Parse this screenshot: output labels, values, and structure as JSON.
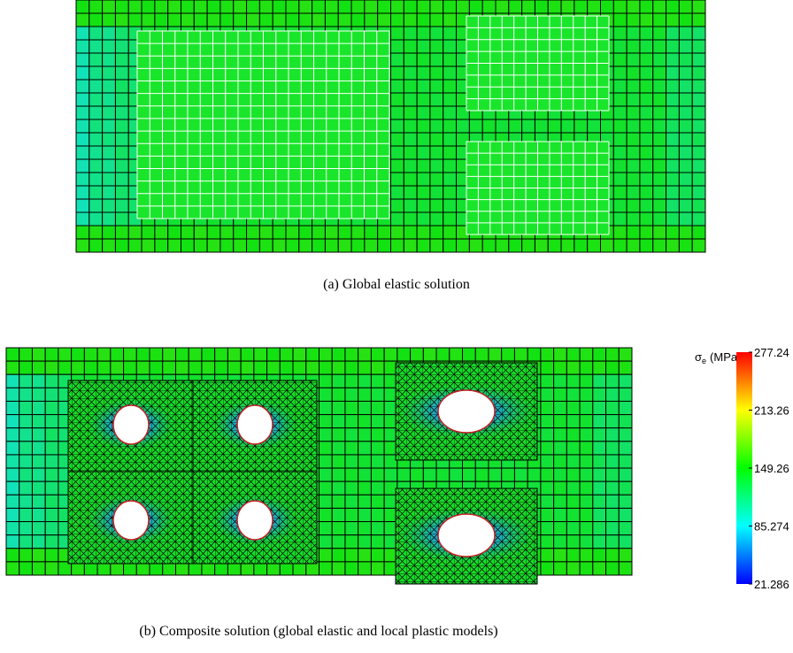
{
  "figure_a": {
    "caption": "(a) Global elastic solution"
  },
  "figure_b": {
    "caption": "(b) Composite solution (global elastic and local plastic models)",
    "colorbar": {
      "symbol": "σ",
      "subscript": "e",
      "unit": "(MPa)",
      "clim": [
        21.286,
        277.24
      ],
      "ticks": [
        277.24,
        213.26,
        149.26,
        85.274,
        21.286
      ]
    }
  }
}
